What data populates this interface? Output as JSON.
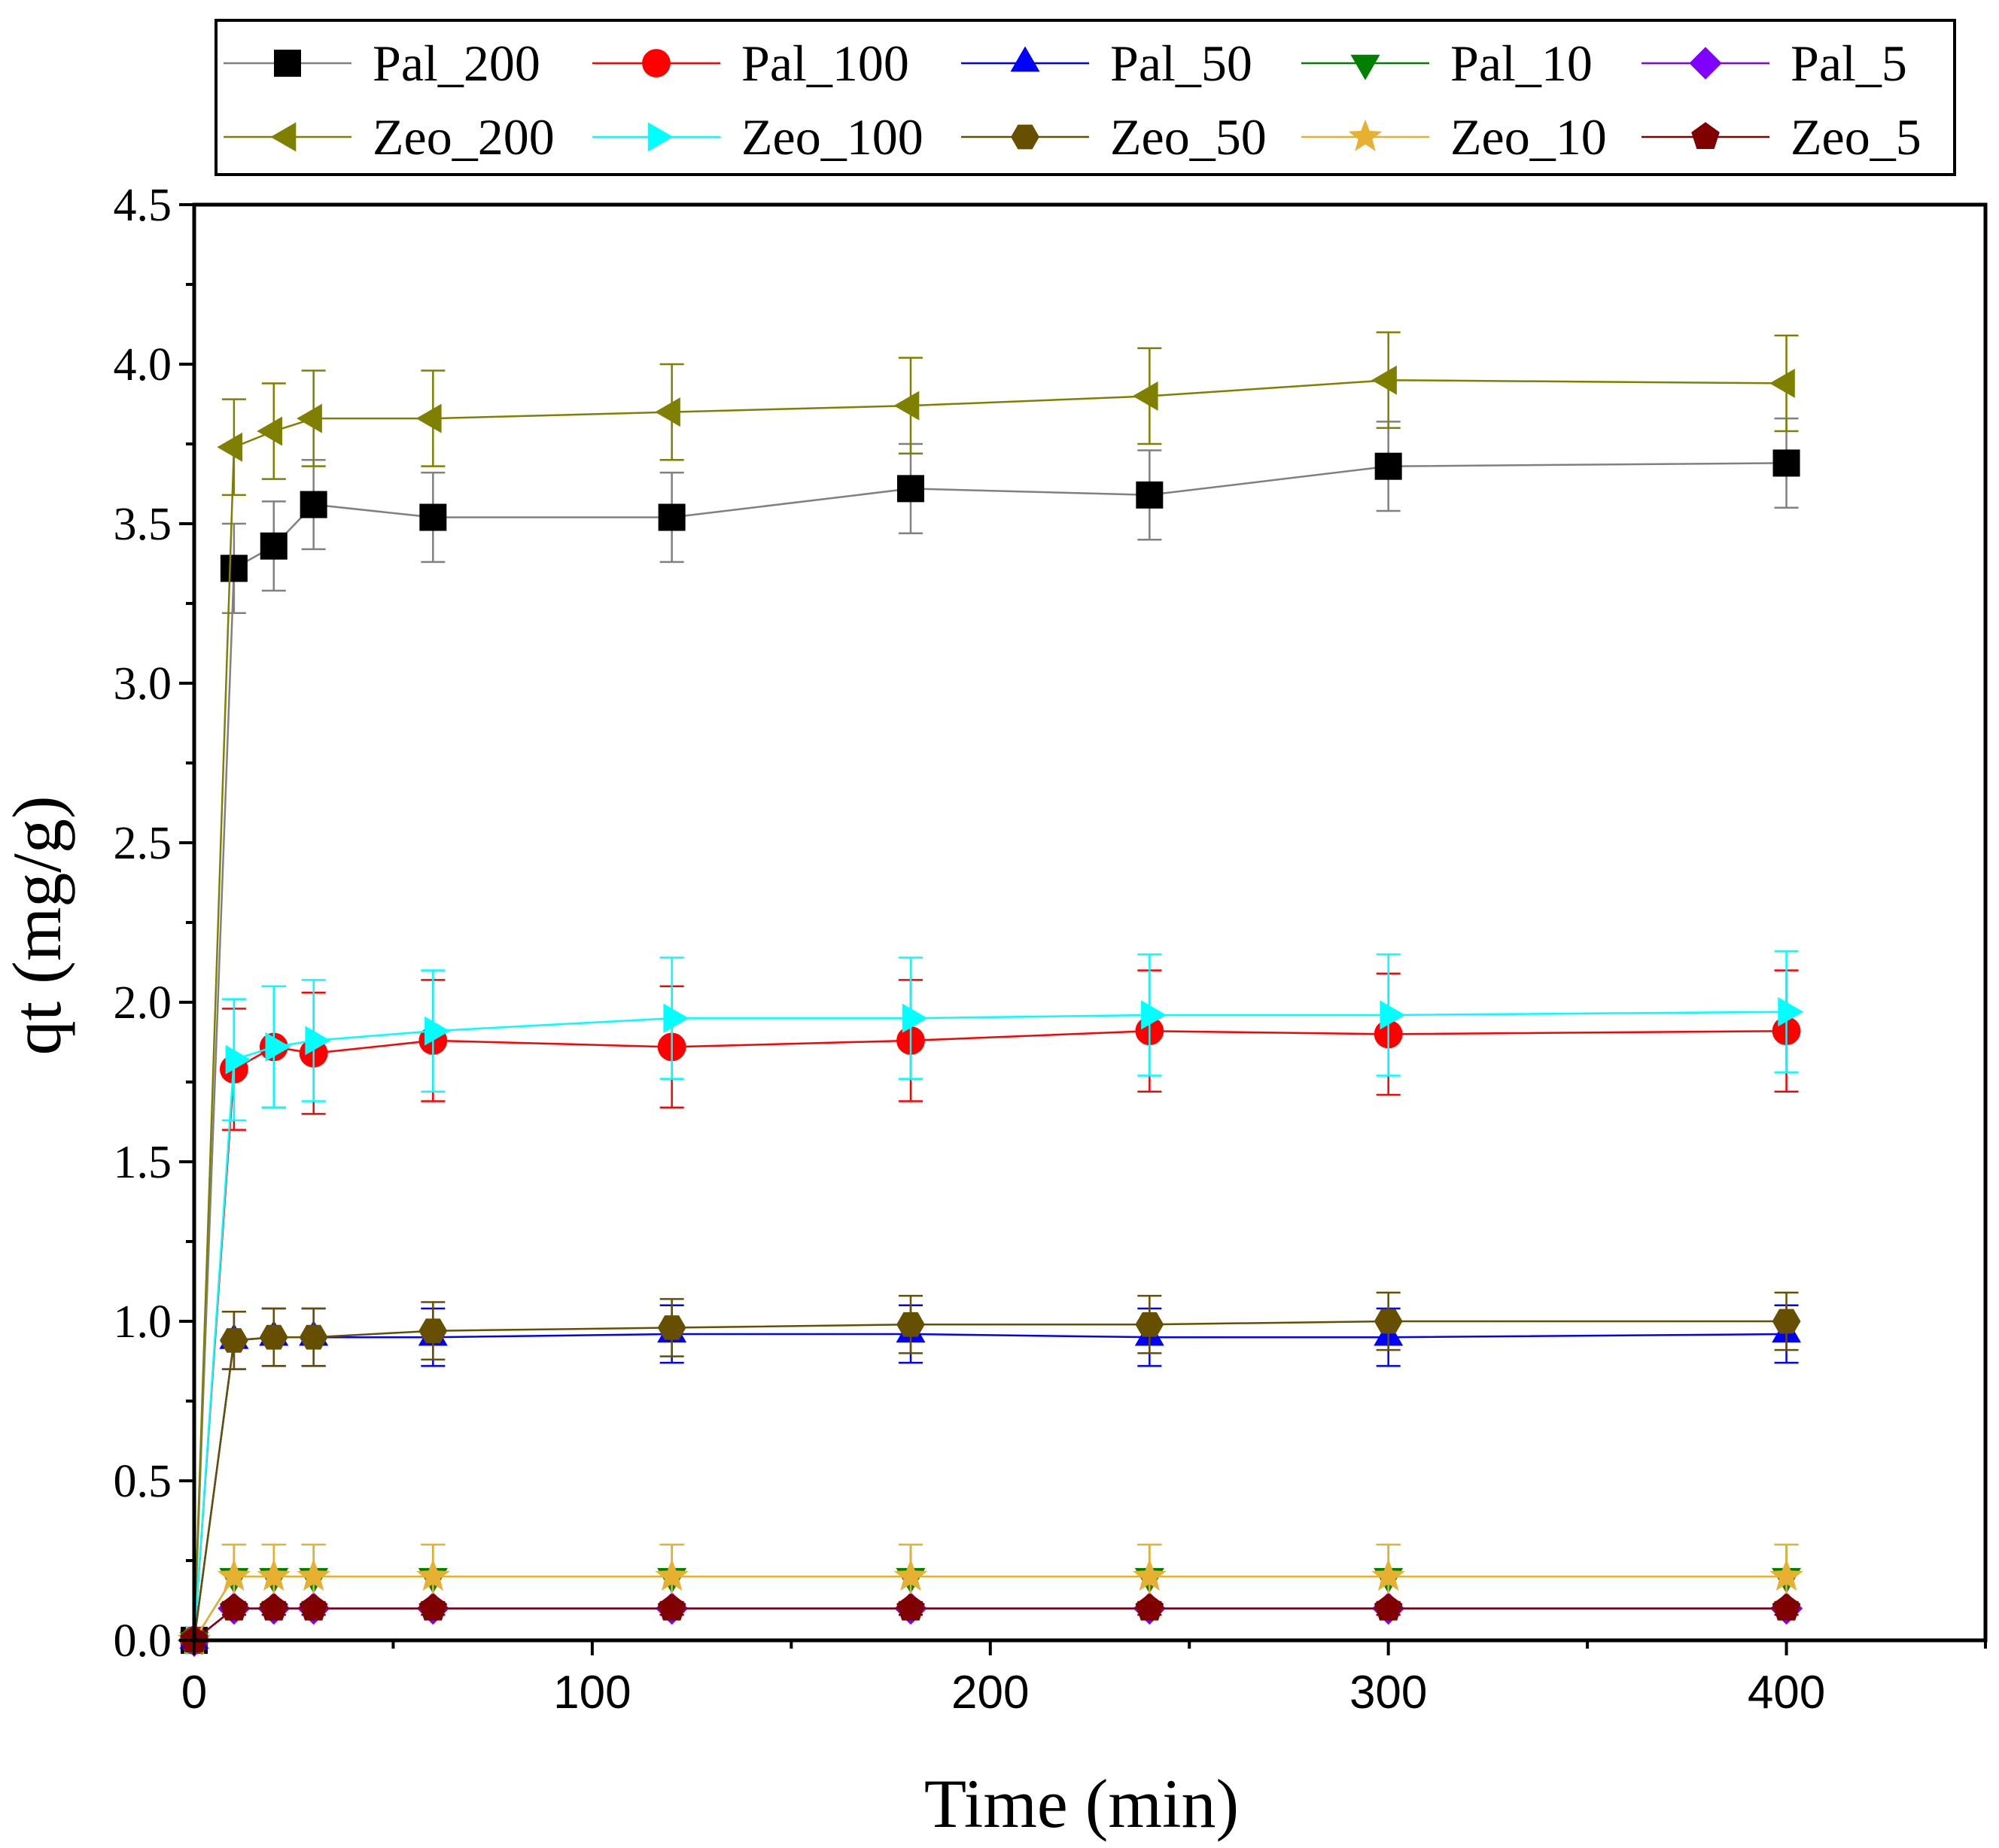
{
  "chart_data": {
    "type": "line",
    "xlabel": "Time (min)",
    "ylabel": "qt (mg/g)",
    "xlim": [
      0,
      450
    ],
    "ylim": [
      0,
      4.5
    ],
    "x_ticks": [
      0,
      100,
      200,
      300,
      400
    ],
    "x_tick_labels": [
      "0",
      "100",
      "200",
      "300",
      "400"
    ],
    "y_ticks": [
      0.0,
      0.5,
      1.0,
      1.5,
      2.0,
      2.5,
      3.0,
      3.5,
      4.0,
      4.5
    ],
    "y_tick_labels": [
      "0.0",
      "0.5",
      "1.0",
      "1.5",
      "2.0",
      "2.5",
      "3.0",
      "3.5",
      "4.0",
      "4.5"
    ],
    "legend_position": "top",
    "grid": false,
    "x": [
      0,
      10,
      20,
      30,
      60,
      120,
      180,
      240,
      300,
      400
    ],
    "series": [
      {
        "name": "Pal_200",
        "color": "#808080",
        "marker_color": "#000000",
        "marker": "square",
        "values": [
          0,
          3.36,
          3.43,
          3.56,
          3.52,
          3.52,
          3.61,
          3.59,
          3.68,
          3.69
        ],
        "error": 0.14
      },
      {
        "name": "Pal_100",
        "color": "#ff0000",
        "marker_color": "#ff0000",
        "marker": "circle",
        "values": [
          0,
          1.79,
          1.86,
          1.84,
          1.88,
          1.86,
          1.88,
          1.91,
          1.9,
          1.91
        ],
        "error": 0.19
      },
      {
        "name": "Pal_50",
        "color": "#0000ff",
        "marker_color": "#0000ff",
        "marker": "triangle-up",
        "values": [
          0,
          0.94,
          0.95,
          0.95,
          0.95,
          0.96,
          0.96,
          0.95,
          0.95,
          0.96
        ],
        "error": 0.09
      },
      {
        "name": "Pal_10",
        "color": "#008000",
        "marker_color": "#008000",
        "marker": "triangle-down",
        "values": [
          0,
          0.2,
          0.2,
          0.2,
          0.2,
          0.2,
          0.2,
          0.2,
          0.2,
          0.2
        ],
        "error": 0.1
      },
      {
        "name": "Pal_5",
        "color": "#8000ff",
        "marker_color": "#8000ff",
        "marker": "diamond",
        "values": [
          0,
          0.1,
          0.1,
          0.1,
          0.1,
          0.1,
          0.1,
          0.1,
          0.1,
          0.1
        ],
        "error": 0.02
      },
      {
        "name": "Zeo_200",
        "color": "#808000",
        "marker_color": "#808000",
        "marker": "triangle-left",
        "values": [
          0,
          3.74,
          3.79,
          3.83,
          3.83,
          3.85,
          3.87,
          3.9,
          3.95,
          3.94
        ],
        "error": 0.15
      },
      {
        "name": "Zeo_100",
        "color": "#00ffff",
        "marker_color": "#00ffff",
        "marker": "triangle-right",
        "values": [
          0,
          1.82,
          1.86,
          1.88,
          1.91,
          1.95,
          1.95,
          1.96,
          1.96,
          1.97
        ],
        "error": 0.19
      },
      {
        "name": "Zeo_50",
        "color": "#665000",
        "marker_color": "#665000",
        "marker": "hexagon",
        "values": [
          0,
          0.94,
          0.95,
          0.95,
          0.97,
          0.98,
          0.99,
          0.99,
          1.0,
          1.0
        ],
        "error": 0.09
      },
      {
        "name": "Zeo_10",
        "color": "#e8b030",
        "marker_color": "#e8b030",
        "marker": "star",
        "values": [
          0,
          0.2,
          0.2,
          0.2,
          0.2,
          0.2,
          0.2,
          0.2,
          0.2,
          0.2
        ],
        "error": 0.1
      },
      {
        "name": "Zeo_5",
        "color": "#800000",
        "marker_color": "#800000",
        "marker": "pentagon",
        "values": [
          0,
          0.1,
          0.1,
          0.1,
          0.1,
          0.1,
          0.1,
          0.1,
          0.1,
          0.1
        ],
        "error": 0.02
      }
    ]
  }
}
